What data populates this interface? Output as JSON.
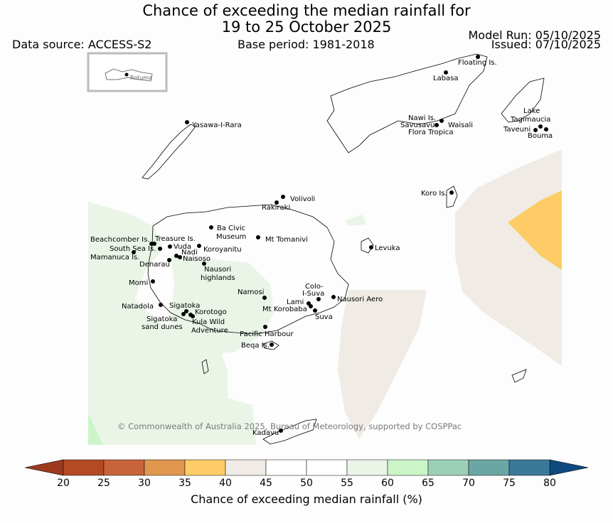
{
  "header": {
    "title_line1": "Chance of exceeding the median rainfall for",
    "title_line2": "19 to 25 October 2025",
    "data_source": "Data source: ACCESS-S2",
    "base_period": "Base period: 1981-2018",
    "model_run": "Model Run: 05/10/2025",
    "issued": "Issued: 07/10/2025"
  },
  "inset": {
    "label": "Rotuma"
  },
  "places": [
    "Floating Is.",
    "Labasa",
    "Yasawa-I-Rara",
    "Nawi Is.",
    "Savusavu",
    "Waisali",
    "Flora Tropica",
    "Lake",
    "Tagimaucia",
    "Taveuni",
    "Bouma",
    "Koro Is.",
    "Volivoli",
    "Rakiraki",
    "Ba Civic",
    "Museum",
    "Mt Tomanivi",
    "Beachcomber Is.",
    "Treasure Is.",
    "South Sea Is.",
    "Vuda",
    "Koroyanitu",
    "Nadi",
    "Mamanuca Is.",
    "Naisoso",
    "Denarau",
    "Nausori",
    "highlands",
    "Levuka",
    "Momi",
    "Colo-",
    "I-Suva",
    "Namosi",
    "Lami",
    "Nausori Aero",
    "Natadola",
    "Sigatoka",
    "Mt Korobaba",
    "Korotogo",
    "Suva",
    "Sigatoka",
    "sand dunes",
    "Kula Wild",
    "Adventure",
    "Pacific Harbour",
    "Beqa Is.",
    "Kadavu"
  ],
  "copyright": "© Commonwealth of Australia 2025, Bureau of Meteorology, supported by COSPPac",
  "colorbar": {
    "ticks": [
      "20",
      "25",
      "30",
      "35",
      "40",
      "45",
      "50",
      "55",
      "60",
      "65",
      "70",
      "75",
      "80"
    ],
    "title": "Chance of exceeding median rainfall (%)",
    "colors": [
      "#b34a24",
      "#c8643a",
      "#e0964e",
      "#fdcc66",
      "#f0ebe4",
      "#ffffff",
      "#ffffff",
      "#eaf5e8",
      "#cbf5c8",
      "#9bd0b6",
      "#6aa6a4",
      "#3c789a",
      "#0e4a80"
    ],
    "under_color": "#9c3a1e"
  },
  "legend_bins": {
    "35-40": "#fdcc66",
    "40-45": "#f0ebe4",
    "55-60": "#eaf5e8",
    "60-65": "#cbf5c8"
  }
}
